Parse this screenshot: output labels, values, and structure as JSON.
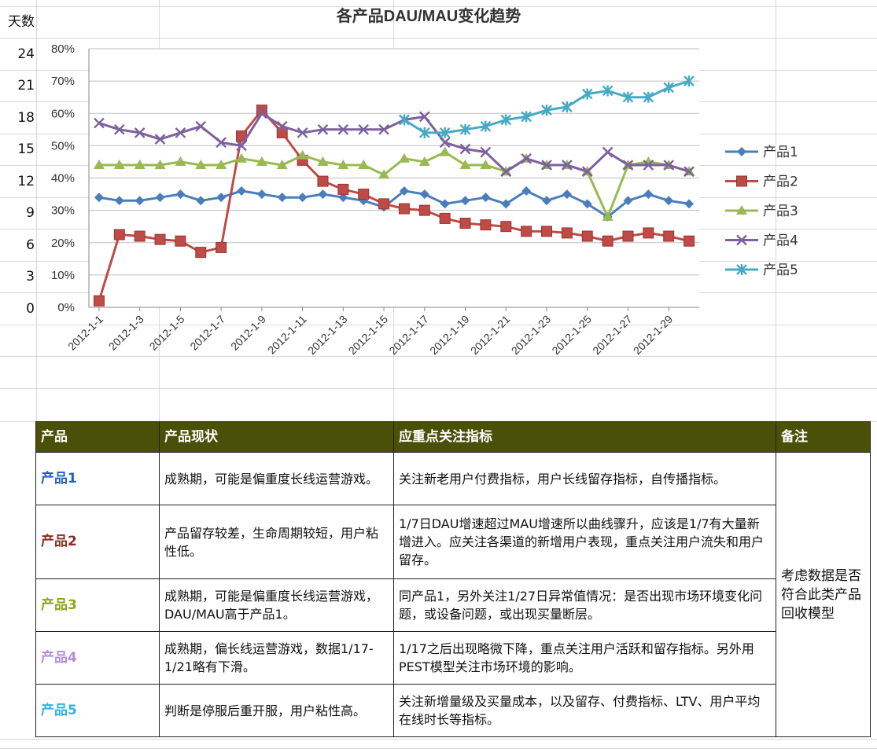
{
  "sidebar": {
    "header": "天数",
    "values": [
      "24",
      "21",
      "18",
      "15",
      "12",
      "9",
      "6",
      "3",
      "0"
    ]
  },
  "chart_data": {
    "type": "line",
    "title": "各产品DAU/MAU变化趋势",
    "xlabel": "",
    "ylabel": "",
    "ylim": [
      0,
      80
    ],
    "yticks": [
      "0%",
      "10%",
      "20%",
      "30%",
      "40%",
      "50%",
      "60%",
      "70%",
      "80%"
    ],
    "x_tick_labels": [
      "2012-1-1",
      "2012-1-3",
      "2012-1-5",
      "2012-1-7",
      "2012-1-9",
      "2012-1-11",
      "2012-1-13",
      "2012-1-15",
      "2012-1-17",
      "2012-1-19",
      "2012-1-21",
      "2012-1-23",
      "2012-1-25",
      "2012-1-27",
      "2012-1-29"
    ],
    "legend_position": "right",
    "grid": true,
    "categories": [
      "2012-1-1",
      "2012-1-2",
      "2012-1-3",
      "2012-1-4",
      "2012-1-5",
      "2012-1-6",
      "2012-1-7",
      "2012-1-8",
      "2012-1-9",
      "2012-1-10",
      "2012-1-11",
      "2012-1-12",
      "2012-1-13",
      "2012-1-14",
      "2012-1-15",
      "2012-1-16",
      "2012-1-17",
      "2012-1-18",
      "2012-1-19",
      "2012-1-20",
      "2012-1-21",
      "2012-1-22",
      "2012-1-23",
      "2012-1-24",
      "2012-1-25",
      "2012-1-26",
      "2012-1-27",
      "2012-1-28",
      "2012-1-29",
      "2012-1-30"
    ],
    "series": [
      {
        "name": "产品1",
        "color": "#4a7ebb",
        "marker": "diamond",
        "values": [
          34,
          33,
          33,
          34,
          35,
          33,
          34,
          36,
          35,
          34,
          34,
          35,
          34,
          33,
          31,
          36,
          35,
          32,
          33,
          34,
          32,
          36,
          33,
          35,
          32,
          28,
          33,
          35,
          33,
          32
        ]
      },
      {
        "name": "产品2",
        "color": "#be4b48",
        "marker": "square",
        "values": [
          2,
          22.5,
          22,
          21,
          20.5,
          17,
          18.5,
          53,
          61,
          54,
          45.5,
          39,
          36.5,
          35,
          32,
          30.5,
          30,
          27.5,
          26,
          25.5,
          25,
          23.5,
          23.5,
          23,
          22,
          20.5,
          22,
          23,
          22,
          20.5
        ]
      },
      {
        "name": "产品3",
        "color": "#98b954",
        "marker": "triangle",
        "values": [
          44,
          44,
          44,
          44,
          45,
          44,
          44,
          46,
          45,
          44,
          47,
          45,
          44,
          44,
          41,
          46,
          45,
          48,
          44,
          44,
          42,
          46,
          44,
          44,
          42,
          28,
          44,
          45,
          44,
          42
        ]
      },
      {
        "name": "产品4",
        "color": "#7d60a0",
        "marker": "cross",
        "values": [
          57,
          55,
          54,
          52,
          54,
          56,
          51,
          50,
          60,
          56,
          54,
          55,
          55,
          55,
          55,
          58,
          59,
          51,
          49,
          48,
          42,
          46,
          44,
          44,
          42,
          48,
          44,
          44,
          44,
          42
        ]
      },
      {
        "name": "产品5",
        "color": "#46aac5",
        "marker": "star",
        "values": [
          null,
          null,
          null,
          null,
          null,
          null,
          null,
          null,
          null,
          null,
          null,
          null,
          null,
          null,
          null,
          58,
          54,
          54,
          55,
          56,
          58,
          59,
          61,
          62,
          66,
          67,
          65,
          65,
          68,
          70
        ]
      }
    ]
  },
  "table": {
    "headers": [
      "产品",
      "产品现状",
      "应重点关注指标",
      "备注"
    ],
    "note": "考虑数据是否符合此类产品回收模型",
    "rows": [
      {
        "product": "产品1",
        "color": "#1f5fc2",
        "status": "成熟期，可能是偏重度长线运营游戏。",
        "metrics": "关注新老用户付费指标，用户长线留存指标，自传播指标。"
      },
      {
        "product": "产品2",
        "color": "#8a2a1e",
        "status": "产品留存较差，生命周期较短，用户粘性低。",
        "metrics": "1/7日DAU增速超过MAU增速所以曲线骤升，应该是1/7有大量新增进入。应关注各渠道的新增用户表现，重点关注用户流失和用户留存。"
      },
      {
        "product": "产品3",
        "color": "#8aa61c",
        "status": "成熟期，可能是偏重度长线运营游戏，DAU/MAU高于产品1。",
        "metrics": "同产品1，另外关注1/27日异常值情况：是否出现市场环境变化问题，或设备问题，或出现买量断层。"
      },
      {
        "product": "产品4",
        "color": "#b38ae0",
        "status": "成熟期，偏长线运营游戏，数据1/17-1/21略有下滑。",
        "metrics": "1/17之后出现略微下降，重点关注用户活跃和留存指标。另外用PEST模型关注市场环境的影响。"
      },
      {
        "product": "产品5",
        "color": "#2fb2e6",
        "status": "判断是停服后重开服，用户粘性高。",
        "metrics": "关注新增量级及买量成本，以及留存、付费指标、LTV、用户平均在线时长等指标。"
      }
    ]
  }
}
